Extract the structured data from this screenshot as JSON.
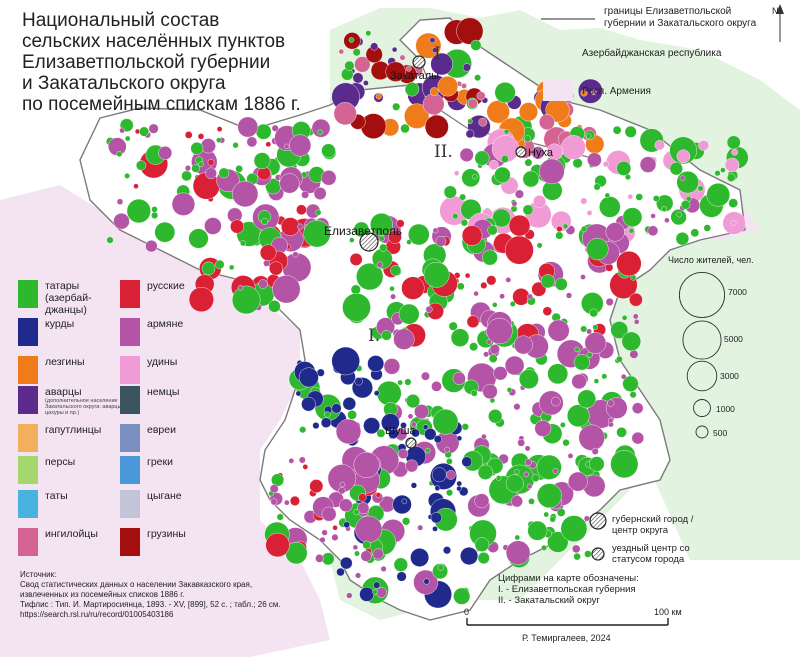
{
  "title_lines": [
    "Национальный состав",
    "сельских населённых пунктов",
    "Елизаветпольской губернии",
    "и Закатальского округа",
    "по посемейным спискам 1886 г."
  ],
  "top_legend": {
    "border": "границы Елизаветпольской губернии и Закатальского округа",
    "azerbaijan": "Азербайджанская республика",
    "armenia": "Респ. Армения"
  },
  "compass": "N",
  "ethnic_legend": [
    {
      "label": "татары (азербай-джанцы)",
      "color": "#2eb82e"
    },
    {
      "label": "русские",
      "color": "#d92035"
    },
    {
      "label": "курды",
      "color": "#1f2a8c"
    },
    {
      "label": "армяне",
      "color": "#b354a6"
    },
    {
      "label": "лезгины",
      "color": "#ef7b1b"
    },
    {
      "label": "удины",
      "color": "#f09ad6"
    },
    {
      "label": "аварцы",
      "color": "#5a2a8c",
      "note": "(дополнительное население Закатальского округа: аварцы, цахуры и пр.)"
    },
    {
      "label": "немцы",
      "color": "#3c5360"
    },
    {
      "label": "гапутлинцы",
      "color": "#f2b05e"
    },
    {
      "label": "евреи",
      "color": "#7a8fc0"
    },
    {
      "label": "персы",
      "color": "#a6d66e"
    },
    {
      "label": "греки",
      "color": "#4a97d9"
    },
    {
      "label": "таты",
      "color": "#49b2e0"
    },
    {
      "label": "цыгане",
      "color": "#c4c4d8"
    },
    {
      "label": "ингилойцы",
      "color": "#d46493"
    },
    {
      "label": "грузины",
      "color": "#a30f0f"
    }
  ],
  "population_legend": {
    "title": "Число жителей, чел.",
    "values": [
      7000,
      5000,
      3000,
      1000,
      500
    ],
    "labels": [
      "7000",
      "5000",
      "3000",
      "1000",
      "500"
    ]
  },
  "map_labels": {
    "zakataly": "Закаталы",
    "nukha": "Нуха",
    "elizavetpol": "Елизаветполь",
    "shusha": "Шуша",
    "region1": "I.",
    "region2": "II.",
    "region2_top": "I"
  },
  "symbols": {
    "gov_city": "губернский город / центр округа",
    "district_center": "уездный центр со статусом города"
  },
  "region_notes": {
    "heading": "Цифрами на карте обозначены:",
    "items": [
      "I. - Елизаветпольская губерния",
      "II. - Закатальский округ"
    ]
  },
  "scale": {
    "start": "0",
    "end": "100 км"
  },
  "credit": "Р. Темиргалеев, 2024",
  "source": {
    "heading": "Источник:",
    "lines": [
      "Свод статистических данных о населении Закавказского края,",
      "извлеченных из посемейных списков 1886 г.",
      "Тифлис : Тип. И. Мартиросиянца, 1893. - XV, [899], 52 с. ; табл.; 26 см.",
      "https://search.rsl.ru/ru/record/01005403186"
    ]
  },
  "colors": {
    "azerbaijan": "#e2f3e0",
    "armenia": "#f4e3f1",
    "province": "#ffffff",
    "border": "#7a7a7a"
  }
}
